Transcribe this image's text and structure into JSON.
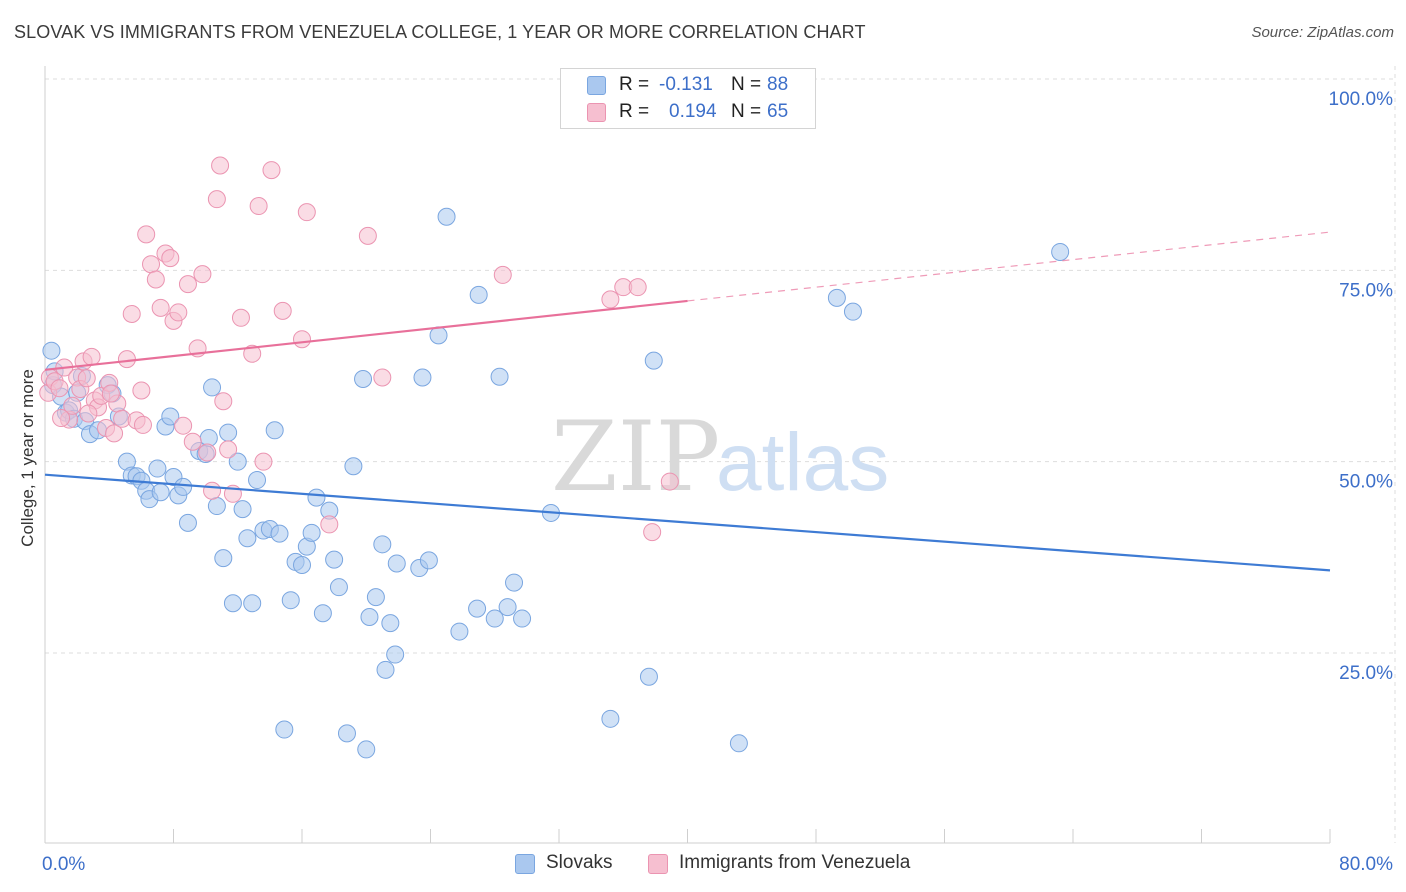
{
  "title": "SLOVAK VS IMMIGRANTS FROM VENEZUELA COLLEGE, 1 YEAR OR MORE CORRELATION CHART",
  "source": "Source: ZipAtlas.com",
  "watermark": {
    "zip": "ZIP",
    "atlas": "atlas"
  },
  "colors": {
    "blue_fill": "#aac8ef",
    "blue_stroke": "#7aa6e0",
    "blue_line": "#3e7bd4",
    "pink_fill": "#f6bfd0",
    "pink_stroke": "#eb94b1",
    "pink_line": "#e8709a",
    "axis_text": "#3d6fc9",
    "grid": "#dddddd"
  },
  "legend_top": {
    "rows": [
      {
        "r_label": "R =",
        "r_value": "-0.131",
        "n_label": "N =",
        "n_value": "88"
      },
      {
        "r_label": "R =",
        "r_value": "0.194",
        "n_label": "N =",
        "n_value": "65"
      }
    ]
  },
  "legend_bottom": {
    "items": [
      {
        "label": "Slovaks"
      },
      {
        "label": "Immigrants from Venezuela"
      }
    ]
  },
  "chart_data": {
    "type": "scatter",
    "title": "SLOVAK VS IMMIGRANTS FROM VENEZUELA COLLEGE, 1 YEAR OR MORE CORRELATION CHART",
    "xlabel": "",
    "ylabel": "College, 1 year or more",
    "xlim": [
      0,
      80
    ],
    "ylim": [
      0,
      105
    ],
    "x_tick_labels": [
      "0.0%",
      "80.0%"
    ],
    "y_ticks": [
      25,
      50,
      75,
      100
    ],
    "y_tick_labels": [
      "25.0%",
      "50.0%",
      "75.0%",
      "100.0%"
    ],
    "grid": true,
    "series": [
      {
        "name": "Slovaks",
        "r": -0.131,
        "n": 88,
        "trend": {
          "x": [
            0,
            80
          ],
          "y": [
            48.3,
            35.8
          ],
          "solid_to": 80
        },
        "points": [
          [
            0.4,
            64.5
          ],
          [
            0.5,
            60.0
          ],
          [
            0.6,
            61.8
          ],
          [
            1.0,
            58.5
          ],
          [
            1.3,
            56.4
          ],
          [
            1.5,
            56.7
          ],
          [
            1.8,
            55.6
          ],
          [
            2.0,
            59.0
          ],
          [
            2.3,
            61.2
          ],
          [
            2.5,
            55.3
          ],
          [
            2.8,
            53.6
          ],
          [
            3.3,
            54.1
          ],
          [
            3.9,
            60.0
          ],
          [
            4.2,
            58.9
          ],
          [
            4.6,
            55.9
          ],
          [
            5.1,
            50.0
          ],
          [
            5.4,
            48.2
          ],
          [
            5.7,
            48.1
          ],
          [
            6.0,
            47.5
          ],
          [
            6.3,
            46.2
          ],
          [
            6.5,
            45.1
          ],
          [
            7.0,
            49.1
          ],
          [
            7.2,
            46.0
          ],
          [
            7.5,
            54.6
          ],
          [
            7.8,
            55.9
          ],
          [
            8.0,
            48.0
          ],
          [
            8.3,
            45.6
          ],
          [
            8.6,
            46.7
          ],
          [
            8.9,
            42.0
          ],
          [
            9.6,
            51.4
          ],
          [
            10.0,
            51.0
          ],
          [
            10.2,
            53.1
          ],
          [
            10.4,
            59.7
          ],
          [
            10.7,
            44.2
          ],
          [
            11.1,
            37.4
          ],
          [
            11.4,
            53.8
          ],
          [
            11.7,
            31.5
          ],
          [
            12.0,
            50.0
          ],
          [
            12.3,
            43.8
          ],
          [
            12.6,
            40.0
          ],
          [
            12.9,
            31.5
          ],
          [
            13.2,
            47.6
          ],
          [
            13.6,
            41.0
          ],
          [
            14.0,
            41.2
          ],
          [
            14.3,
            54.1
          ],
          [
            14.6,
            40.6
          ],
          [
            14.9,
            15.0
          ],
          [
            15.3,
            31.9
          ],
          [
            15.6,
            36.9
          ],
          [
            16.0,
            36.5
          ],
          [
            16.3,
            38.9
          ],
          [
            16.6,
            40.7
          ],
          [
            16.9,
            45.3
          ],
          [
            17.3,
            30.2
          ],
          [
            17.7,
            43.6
          ],
          [
            18.0,
            37.2
          ],
          [
            18.3,
            33.6
          ],
          [
            18.8,
            14.5
          ],
          [
            19.2,
            49.4
          ],
          [
            20.0,
            12.4
          ],
          [
            20.2,
            29.7
          ],
          [
            20.6,
            32.3
          ],
          [
            21.0,
            39.2
          ],
          [
            21.2,
            22.8
          ],
          [
            21.8,
            24.8
          ],
          [
            21.9,
            36.7
          ],
          [
            21.5,
            28.9
          ],
          [
            19.8,
            60.8
          ],
          [
            23.3,
            36.1
          ],
          [
            23.5,
            61.0
          ],
          [
            23.9,
            37.1
          ],
          [
            24.5,
            66.5
          ],
          [
            25.0,
            82.0
          ],
          [
            25.8,
            27.8
          ],
          [
            26.9,
            30.8
          ],
          [
            27.0,
            71.8
          ],
          [
            28.0,
            29.5
          ],
          [
            28.3,
            61.1
          ],
          [
            28.8,
            31.0
          ],
          [
            29.2,
            34.2
          ],
          [
            29.7,
            29.5
          ],
          [
            31.5,
            43.3
          ],
          [
            35.2,
            16.4
          ],
          [
            37.6,
            21.9
          ],
          [
            37.9,
            63.2
          ],
          [
            43.2,
            13.2
          ],
          [
            49.3,
            71.4
          ],
          [
            50.3,
            69.6
          ],
          [
            63.2,
            77.4
          ]
        ]
      },
      {
        "name": "Immigrants from Venezuela",
        "r": 0.194,
        "n": 65,
        "trend": {
          "x": [
            0,
            80
          ],
          "y": [
            62.0,
            80.0
          ],
          "solid_to": 40
        },
        "points": [
          [
            0.2,
            59.0
          ],
          [
            0.3,
            61.0
          ],
          [
            0.6,
            60.5
          ],
          [
            0.9,
            59.6
          ],
          [
            1.2,
            62.3
          ],
          [
            1.5,
            55.5
          ],
          [
            1.7,
            57.3
          ],
          [
            2.0,
            61.0
          ],
          [
            2.2,
            59.5
          ],
          [
            2.4,
            63.1
          ],
          [
            2.6,
            60.9
          ],
          [
            2.9,
            63.7
          ],
          [
            3.1,
            58.0
          ],
          [
            3.3,
            57.1
          ],
          [
            3.5,
            58.6
          ],
          [
            3.8,
            54.4
          ],
          [
            4.0,
            60.3
          ],
          [
            4.3,
            53.7
          ],
          [
            4.5,
            57.6
          ],
          [
            4.8,
            55.6
          ],
          [
            5.1,
            63.4
          ],
          [
            5.4,
            69.3
          ],
          [
            5.7,
            55.4
          ],
          [
            6.0,
            59.3
          ],
          [
            6.3,
            79.7
          ],
          [
            6.6,
            75.8
          ],
          [
            6.9,
            73.8
          ],
          [
            7.2,
            70.1
          ],
          [
            7.5,
            77.2
          ],
          [
            7.8,
            76.6
          ],
          [
            8.0,
            68.4
          ],
          [
            8.3,
            69.5
          ],
          [
            8.6,
            54.7
          ],
          [
            8.9,
            73.2
          ],
          [
            9.2,
            52.6
          ],
          [
            9.5,
            64.8
          ],
          [
            9.8,
            74.5
          ],
          [
            10.1,
            51.2
          ],
          [
            10.4,
            46.2
          ],
          [
            10.7,
            84.3
          ],
          [
            10.9,
            88.7
          ],
          [
            11.1,
            57.9
          ],
          [
            11.4,
            51.6
          ],
          [
            12.2,
            68.8
          ],
          [
            12.9,
            64.1
          ],
          [
            13.3,
            83.4
          ],
          [
            13.6,
            50.0
          ],
          [
            14.1,
            88.1
          ],
          [
            14.8,
            69.7
          ],
          [
            16.3,
            82.6
          ],
          [
            17.7,
            41.8
          ],
          [
            20.1,
            79.5
          ],
          [
            21.0,
            61.0
          ],
          [
            28.5,
            74.4
          ],
          [
            35.2,
            71.2
          ],
          [
            36.0,
            72.8
          ],
          [
            36.9,
            72.8
          ],
          [
            37.8,
            40.8
          ],
          [
            38.9,
            47.4
          ],
          [
            11.7,
            45.8
          ],
          [
            16.0,
            66.0
          ],
          [
            6.1,
            54.8
          ],
          [
            2.7,
            56.3
          ],
          [
            4.1,
            58.9
          ],
          [
            1.0,
            55.7
          ]
        ]
      }
    ]
  }
}
